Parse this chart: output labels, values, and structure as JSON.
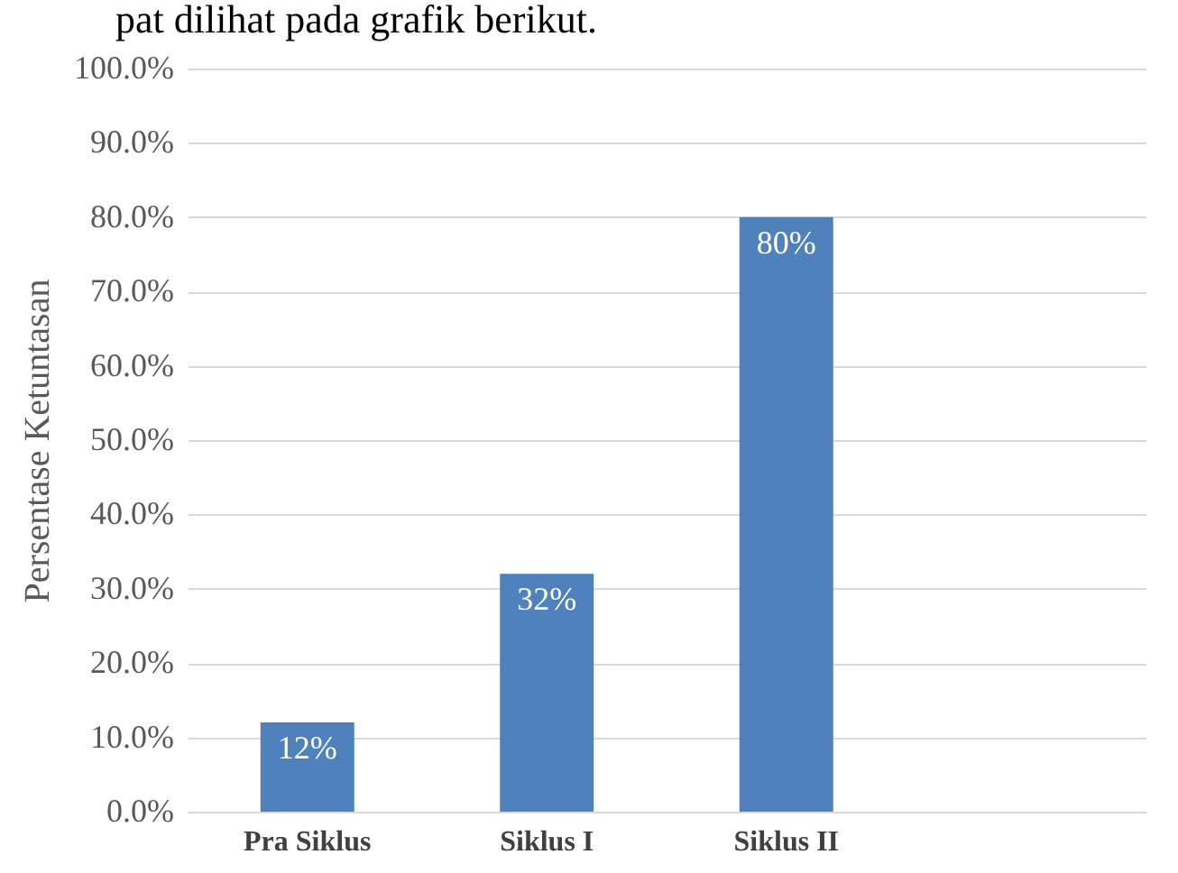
{
  "chart_data": {
    "type": "bar",
    "ylabel": "Persentase Ketuntasan",
    "annotations": [
      "pat dilihat pada grafik berikut."
    ],
    "categories": [
      "Pra Siklus",
      "Siklus I",
      "Siklus II",
      null
    ],
    "values": [
      12,
      32,
      80,
      null
    ],
    "value_labels": [
      "12%",
      "32%",
      "80%",
      null
    ],
    "color": "#4f81bd",
    "ylim": [
      0,
      100
    ],
    "yticks": [
      {
        "value": 0,
        "label": "0.0%"
      },
      {
        "value": 10,
        "label": "10.0%"
      },
      {
        "value": 20,
        "label": "20.0%"
      },
      {
        "value": 30,
        "label": "30.0%"
      },
      {
        "value": 40,
        "label": "40.0%"
      },
      {
        "value": 50,
        "label": "50.0%"
      },
      {
        "value": 60,
        "label": "60.0%"
      },
      {
        "value": 70,
        "label": "70.0%"
      },
      {
        "value": 80,
        "label": "80.0%"
      },
      {
        "value": 90,
        "label": "90.0%"
      },
      {
        "value": 100,
        "label": "100.0%"
      }
    ],
    "grid": "y"
  }
}
